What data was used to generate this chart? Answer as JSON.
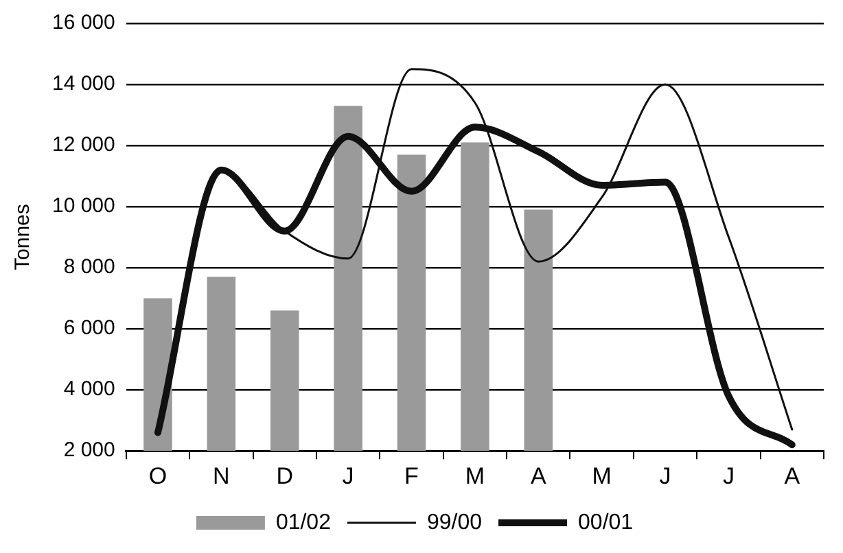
{
  "chart_data": {
    "type": "bar",
    "ylabel": "Tonnes",
    "categories": [
      "O",
      "N",
      "D",
      "J",
      "F",
      "M",
      "A",
      "M",
      "J",
      "J",
      "A"
    ],
    "series": [
      {
        "name": "01/02",
        "color": "#9a9a9a",
        "values": [
          7000,
          7700,
          6600,
          13300,
          11700,
          12100,
          9900,
          null,
          null,
          null,
          null
        ]
      },
      {
        "name": "99/00",
        "type": "line",
        "color": "#111111",
        "values": [
          2600,
          11200,
          9200,
          8300,
          14500,
          13400,
          8200,
          10300,
          14000,
          9000,
          2700
        ]
      },
      {
        "name": "00/01",
        "type": "line",
        "color": "#111111",
        "values": [
          2600,
          11200,
          9200,
          12300,
          10500,
          12600,
          11800,
          10700,
          10800,
          3800,
          2200
        ]
      }
    ],
    "ylim": [
      2000,
      16000
    ],
    "yticks": [
      {
        "value": 2000,
        "label": "2 000"
      },
      {
        "value": 4000,
        "label": "4 000"
      },
      {
        "value": 6000,
        "label": "6 000"
      },
      {
        "value": 8000,
        "label": "8 000"
      },
      {
        "value": 10000,
        "label": "10 000"
      },
      {
        "value": 12000,
        "label": "12 000"
      },
      {
        "value": 14000,
        "label": "14 000"
      },
      {
        "value": 16000,
        "label": "16 000"
      }
    ],
    "grid": "y",
    "legend": "bottom",
    "marker": "none",
    "line_style": "solid"
  }
}
